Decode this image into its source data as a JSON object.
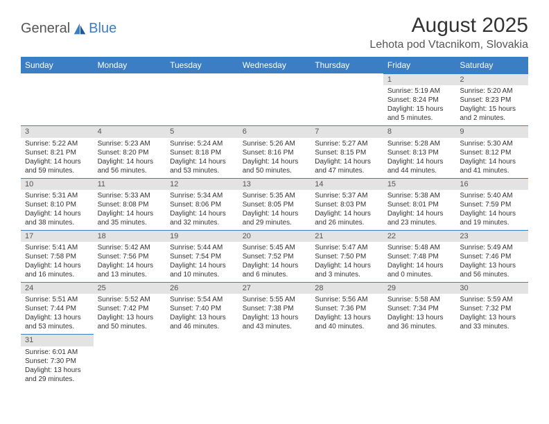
{
  "logo": {
    "text1": "General",
    "text2": "Blue"
  },
  "title": "August 2025",
  "location": "Lehota pod Vtacnikom, Slovakia",
  "colors": {
    "header_bg": "#3b7ec4",
    "daynum_bg": "#e3e3e3",
    "text": "#333333"
  },
  "day_labels": [
    "Sunday",
    "Monday",
    "Tuesday",
    "Wednesday",
    "Thursday",
    "Friday",
    "Saturday"
  ],
  "weeks": [
    [
      null,
      null,
      null,
      null,
      null,
      {
        "n": "1",
        "sr": "Sunrise: 5:19 AM",
        "ss": "Sunset: 8:24 PM",
        "dl1": "Daylight: 15 hours",
        "dl2": "and 5 minutes."
      },
      {
        "n": "2",
        "sr": "Sunrise: 5:20 AM",
        "ss": "Sunset: 8:23 PM",
        "dl1": "Daylight: 15 hours",
        "dl2": "and 2 minutes."
      }
    ],
    [
      {
        "n": "3",
        "sr": "Sunrise: 5:22 AM",
        "ss": "Sunset: 8:21 PM",
        "dl1": "Daylight: 14 hours",
        "dl2": "and 59 minutes."
      },
      {
        "n": "4",
        "sr": "Sunrise: 5:23 AM",
        "ss": "Sunset: 8:20 PM",
        "dl1": "Daylight: 14 hours",
        "dl2": "and 56 minutes."
      },
      {
        "n": "5",
        "sr": "Sunrise: 5:24 AM",
        "ss": "Sunset: 8:18 PM",
        "dl1": "Daylight: 14 hours",
        "dl2": "and 53 minutes."
      },
      {
        "n": "6",
        "sr": "Sunrise: 5:26 AM",
        "ss": "Sunset: 8:16 PM",
        "dl1": "Daylight: 14 hours",
        "dl2": "and 50 minutes."
      },
      {
        "n": "7",
        "sr": "Sunrise: 5:27 AM",
        "ss": "Sunset: 8:15 PM",
        "dl1": "Daylight: 14 hours",
        "dl2": "and 47 minutes."
      },
      {
        "n": "8",
        "sr": "Sunrise: 5:28 AM",
        "ss": "Sunset: 8:13 PM",
        "dl1": "Daylight: 14 hours",
        "dl2": "and 44 minutes."
      },
      {
        "n": "9",
        "sr": "Sunrise: 5:30 AM",
        "ss": "Sunset: 8:12 PM",
        "dl1": "Daylight: 14 hours",
        "dl2": "and 41 minutes."
      }
    ],
    [
      {
        "n": "10",
        "sr": "Sunrise: 5:31 AM",
        "ss": "Sunset: 8:10 PM",
        "dl1": "Daylight: 14 hours",
        "dl2": "and 38 minutes."
      },
      {
        "n": "11",
        "sr": "Sunrise: 5:33 AM",
        "ss": "Sunset: 8:08 PM",
        "dl1": "Daylight: 14 hours",
        "dl2": "and 35 minutes."
      },
      {
        "n": "12",
        "sr": "Sunrise: 5:34 AM",
        "ss": "Sunset: 8:06 PM",
        "dl1": "Daylight: 14 hours",
        "dl2": "and 32 minutes."
      },
      {
        "n": "13",
        "sr": "Sunrise: 5:35 AM",
        "ss": "Sunset: 8:05 PM",
        "dl1": "Daylight: 14 hours",
        "dl2": "and 29 minutes."
      },
      {
        "n": "14",
        "sr": "Sunrise: 5:37 AM",
        "ss": "Sunset: 8:03 PM",
        "dl1": "Daylight: 14 hours",
        "dl2": "and 26 minutes."
      },
      {
        "n": "15",
        "sr": "Sunrise: 5:38 AM",
        "ss": "Sunset: 8:01 PM",
        "dl1": "Daylight: 14 hours",
        "dl2": "and 23 minutes."
      },
      {
        "n": "16",
        "sr": "Sunrise: 5:40 AM",
        "ss": "Sunset: 7:59 PM",
        "dl1": "Daylight: 14 hours",
        "dl2": "and 19 minutes."
      }
    ],
    [
      {
        "n": "17",
        "sr": "Sunrise: 5:41 AM",
        "ss": "Sunset: 7:58 PM",
        "dl1": "Daylight: 14 hours",
        "dl2": "and 16 minutes."
      },
      {
        "n": "18",
        "sr": "Sunrise: 5:42 AM",
        "ss": "Sunset: 7:56 PM",
        "dl1": "Daylight: 14 hours",
        "dl2": "and 13 minutes."
      },
      {
        "n": "19",
        "sr": "Sunrise: 5:44 AM",
        "ss": "Sunset: 7:54 PM",
        "dl1": "Daylight: 14 hours",
        "dl2": "and 10 minutes."
      },
      {
        "n": "20",
        "sr": "Sunrise: 5:45 AM",
        "ss": "Sunset: 7:52 PM",
        "dl1": "Daylight: 14 hours",
        "dl2": "and 6 minutes."
      },
      {
        "n": "21",
        "sr": "Sunrise: 5:47 AM",
        "ss": "Sunset: 7:50 PM",
        "dl1": "Daylight: 14 hours",
        "dl2": "and 3 minutes."
      },
      {
        "n": "22",
        "sr": "Sunrise: 5:48 AM",
        "ss": "Sunset: 7:48 PM",
        "dl1": "Daylight: 14 hours",
        "dl2": "and 0 minutes."
      },
      {
        "n": "23",
        "sr": "Sunrise: 5:49 AM",
        "ss": "Sunset: 7:46 PM",
        "dl1": "Daylight: 13 hours",
        "dl2": "and 56 minutes."
      }
    ],
    [
      {
        "n": "24",
        "sr": "Sunrise: 5:51 AM",
        "ss": "Sunset: 7:44 PM",
        "dl1": "Daylight: 13 hours",
        "dl2": "and 53 minutes."
      },
      {
        "n": "25",
        "sr": "Sunrise: 5:52 AM",
        "ss": "Sunset: 7:42 PM",
        "dl1": "Daylight: 13 hours",
        "dl2": "and 50 minutes."
      },
      {
        "n": "26",
        "sr": "Sunrise: 5:54 AM",
        "ss": "Sunset: 7:40 PM",
        "dl1": "Daylight: 13 hours",
        "dl2": "and 46 minutes."
      },
      {
        "n": "27",
        "sr": "Sunrise: 5:55 AM",
        "ss": "Sunset: 7:38 PM",
        "dl1": "Daylight: 13 hours",
        "dl2": "and 43 minutes."
      },
      {
        "n": "28",
        "sr": "Sunrise: 5:56 AM",
        "ss": "Sunset: 7:36 PM",
        "dl1": "Daylight: 13 hours",
        "dl2": "and 40 minutes."
      },
      {
        "n": "29",
        "sr": "Sunrise: 5:58 AM",
        "ss": "Sunset: 7:34 PM",
        "dl1": "Daylight: 13 hours",
        "dl2": "and 36 minutes."
      },
      {
        "n": "30",
        "sr": "Sunrise: 5:59 AM",
        "ss": "Sunset: 7:32 PM",
        "dl1": "Daylight: 13 hours",
        "dl2": "and 33 minutes."
      }
    ],
    [
      {
        "n": "31",
        "sr": "Sunrise: 6:01 AM",
        "ss": "Sunset: 7:30 PM",
        "dl1": "Daylight: 13 hours",
        "dl2": "and 29 minutes."
      },
      null,
      null,
      null,
      null,
      null,
      null
    ]
  ]
}
